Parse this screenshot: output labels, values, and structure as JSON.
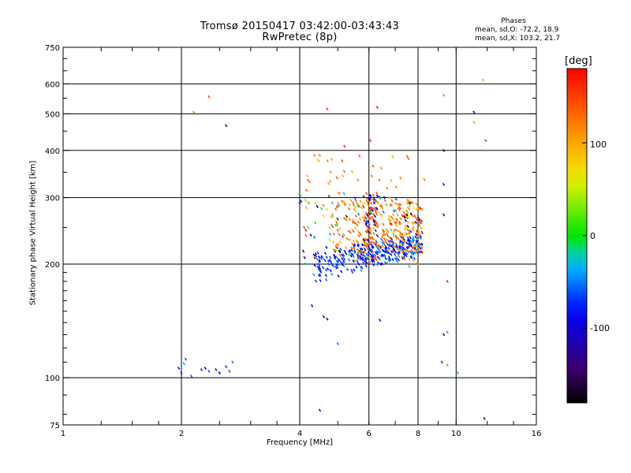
{
  "header": {
    "title_line1": "Tromsø 20150417 03:42:00-03:43:43",
    "title_line2": "RwPretec (8p)"
  },
  "phase_box": {
    "title": "Phases",
    "line_o": "mean, sd,O: -72.2, 18.9",
    "line_x": "mean, sd,X: 103.2, 21.7"
  },
  "colorbar": {
    "title": "[deg]",
    "tick_labels": [
      "100",
      "0",
      "-100"
    ],
    "range": [
      -180,
      180
    ]
  },
  "chart_data": {
    "type": "scatter",
    "xlabel": "Frequency [MHz]",
    "ylabel": "Stationary phase Virtual Height [km]",
    "xscale": "log2",
    "yscale": "log",
    "xlim": [
      1,
      16
    ],
    "ylim": [
      75,
      750
    ],
    "x_ticks": [
      1,
      2,
      4,
      6,
      8,
      10,
      16
    ],
    "x_tick_labels": [
      "1",
      "2",
      "4",
      "6",
      "8",
      "10",
      "16"
    ],
    "y_ticks": [
      75,
      100,
      200,
      300,
      400,
      500,
      600,
      750
    ],
    "y_tick_labels": [
      "75",
      "100",
      "200",
      "300",
      "400",
      "500",
      "600",
      "750"
    ],
    "grid": true,
    "series": [
      {
        "values_note": "freq_mhz, height_km, phase_deg",
        "points": [
          [
            2.0,
            103,
            -85
          ],
          [
            1.97,
            106,
            -100
          ],
          [
            2.03,
            109,
            -40
          ],
          [
            2.05,
            112,
            -55
          ],
          [
            2.12,
            101,
            -60
          ],
          [
            2.25,
            105,
            -70
          ],
          [
            2.3,
            106,
            -95
          ],
          [
            2.35,
            104,
            -60
          ],
          [
            2.45,
            105,
            -80
          ],
          [
            2.5,
            103,
            -100
          ],
          [
            2.6,
            107,
            -70
          ],
          [
            2.7,
            110,
            -50
          ],
          [
            2.65,
            104,
            -60
          ],
          [
            2.35,
            555,
            150
          ],
          [
            2.15,
            505,
            120
          ],
          [
            2.6,
            465,
            -150
          ],
          [
            4.7,
            515,
            150
          ],
          [
            6.3,
            520,
            170
          ],
          [
            9.3,
            560,
            120
          ],
          [
            11.7,
            615,
            100
          ],
          [
            11.1,
            505,
            -110
          ],
          [
            11.1,
            475,
            110
          ],
          [
            9.3,
            400,
            -120
          ],
          [
            5.2,
            410,
            160
          ],
          [
            6.05,
            425,
            160
          ],
          [
            11.9,
            425,
            -50
          ],
          [
            11.9,
            400,
            110
          ],
          [
            9.3,
            325,
            -100
          ],
          [
            8.3,
            335,
            120
          ],
          [
            9.3,
            270,
            -120
          ],
          [
            9.5,
            180,
            160
          ],
          [
            9.3,
            130,
            -90
          ],
          [
            9.5,
            132,
            140
          ],
          [
            9.2,
            110,
            -70
          ],
          [
            9.5,
            108,
            120
          ],
          [
            10.1,
            103,
            -30
          ],
          [
            11.8,
            78,
            -150
          ],
          [
            4.5,
            82,
            -100
          ],
          [
            4.6,
            145,
            -130
          ],
          [
            4.7,
            143,
            -150
          ],
          [
            5.0,
            123,
            -50
          ],
          [
            6.4,
            142,
            -80
          ],
          [
            4.3,
            155,
            -120
          ],
          [
            4.0,
            305,
            -120
          ],
          [
            4.0,
            290,
            -100
          ],
          [
            7.7,
            222,
            80
          ],
          [
            7.6,
            197,
            -30
          ]
        ]
      }
    ],
    "cluster": {
      "freq_range": [
        4.0,
        8.3
      ],
      "height_range": [
        176,
        310
      ],
      "phase_low": -70,
      "phase_high": 120
    }
  }
}
